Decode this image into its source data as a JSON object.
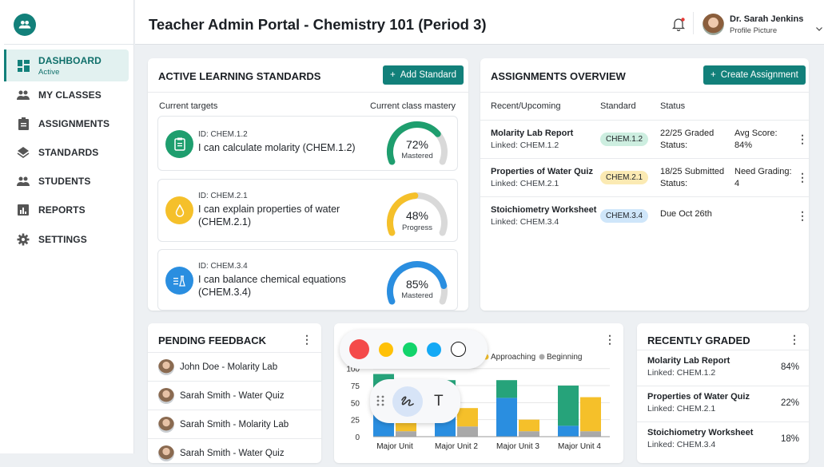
{
  "sidebar": {
    "logo_icon": "people-icon",
    "items": [
      {
        "label": "DASHBOARD",
        "sub": "Active",
        "icon": "dashboard-icon",
        "active": true
      },
      {
        "label": "MY CLASSES",
        "icon": "people-icon"
      },
      {
        "label": "ASSIGNMENTS",
        "icon": "clipboard-icon"
      },
      {
        "label": "STANDARDS",
        "icon": "layers-icon"
      },
      {
        "label": "STUDENTS",
        "icon": "people-icon"
      },
      {
        "label": "REPORTS",
        "icon": "bar-chart-icon"
      },
      {
        "label": "SETTINGS",
        "icon": "gear-icon"
      }
    ]
  },
  "header": {
    "title": "Teacher Admin Portal - Chemistry 101 (Period 3)",
    "user_name": "Dr. Sarah Jenkins",
    "user_sub": "Profile Picture",
    "has_notification": true
  },
  "standards": {
    "title": "ACTIVE LEARNING STANDARDS",
    "add_label": "Add Standard",
    "col_left": "Current targets",
    "col_right": "Current class mastery",
    "items": [
      {
        "id": "ID: CHEM.1.2",
        "text": "I can calculate molarity (CHEM.1.2)",
        "percent": 72,
        "percent_label": "72%",
        "status": "Mastered",
        "color": "#1e9e6e",
        "icon": "clipboard-icon"
      },
      {
        "id": "ID: CHEM.2.1",
        "text": "I can explain properties of water (CHEM.2.1)",
        "percent": 48,
        "percent_label": "48%",
        "status": "Progress",
        "color": "#f5c02a",
        "icon": "water-drop-icon"
      },
      {
        "id": "ID: CHEM.3.4",
        "text": "I can balance chemical equations (CHEM.3.4)",
        "percent": 85,
        "percent_label": "85%",
        "status": "Mastered",
        "color": "#2a8ee0",
        "icon": "flask-icon"
      }
    ]
  },
  "assignments": {
    "title": "ASSIGNMENTS OVERVIEW",
    "create_label": "Create Assignment",
    "headers": [
      "Recent/Upcoming",
      "Standard",
      "Status"
    ],
    "rows": [
      {
        "name": "Molarity Lab Report",
        "linked": "Linked: CHEM.1.2",
        "chip": "CHEM.1.2",
        "chip_bg": "#cdeee0",
        "status1": "22/25 Graded",
        "status2": "Status:",
        "extra1": "Avg Score:",
        "extra2": "84%"
      },
      {
        "name": "Properties of Water Quiz",
        "linked": "Linked: CHEM.2.1",
        "chip": "CHEM.2.1",
        "chip_bg": "#fbeab3",
        "status1": "18/25 Submitted",
        "status2": "Status:",
        "extra1": "Need Grading:",
        "extra2": "4"
      },
      {
        "name": "Stoichiometry Worksheet",
        "linked": "Linked: CHEM.3.4",
        "chip": "CHEM.3.4",
        "chip_bg": "#cfe6fa",
        "status1": "Due Oct 26th",
        "status2": "",
        "extra1": "",
        "extra2": ""
      }
    ]
  },
  "feedback": {
    "title": "PENDING FEEDBACK",
    "items": [
      "John Doe - Molarity Lab",
      "Sarah Smith - Water Quiz",
      "Sarah Smith - Molarity Lab",
      "Sarah Smith - Water Quiz"
    ]
  },
  "chart_data": {
    "type": "bar",
    "stacked": true,
    "categories": [
      "Major Unit",
      "Major Unit 2",
      "Major Unit 3",
      "Major Unit 4"
    ],
    "ylim": [
      0,
      100
    ],
    "yticks": [
      "0",
      "25",
      "50",
      "75",
      "100"
    ],
    "grid": true,
    "legend_position": "top",
    "legend": [
      {
        "name": "Approaching",
        "color": "#f5c02a"
      },
      {
        "name": "Beginning",
        "color": "#a9a9a9"
      }
    ],
    "stack_left": [
      {
        "color": "#2a8ee0",
        "values": [
          70,
          60,
          57,
          16
        ]
      },
      {
        "color": "#26a37a",
        "values": [
          22,
          23,
          26,
          59
        ]
      }
    ],
    "stack_right": [
      {
        "name": "Beginning",
        "color": "#a9a9a9",
        "values": [
          8,
          15,
          8,
          8
        ]
      },
      {
        "name": "Approaching",
        "color": "#f5c02a",
        "values": [
          19,
          27,
          17,
          50
        ]
      }
    ]
  },
  "annotation_toolbar": {
    "colors": [
      "#f44a4a",
      "#ffc107",
      "#12d46b",
      "#14a9f5",
      "#ffffff"
    ],
    "tools": [
      {
        "icon": "drag-handle-icon"
      },
      {
        "icon": "pen-scribble-icon",
        "active": true
      },
      {
        "icon": "text-tool-icon",
        "label": "T"
      }
    ]
  },
  "graded": {
    "title": "RECENTLY GRADED",
    "items": [
      {
        "name": "Molarity Lab Report",
        "linked": "Linked: CHEM.1.2",
        "score": "84%"
      },
      {
        "name": "Properties of Water Quiz",
        "linked": "Linked: CHEM.2.1",
        "score": "22%"
      },
      {
        "name": "Stoichiometry Worksheet",
        "linked": "Linked: CHEM.3.4",
        "score": "18%"
      }
    ]
  }
}
